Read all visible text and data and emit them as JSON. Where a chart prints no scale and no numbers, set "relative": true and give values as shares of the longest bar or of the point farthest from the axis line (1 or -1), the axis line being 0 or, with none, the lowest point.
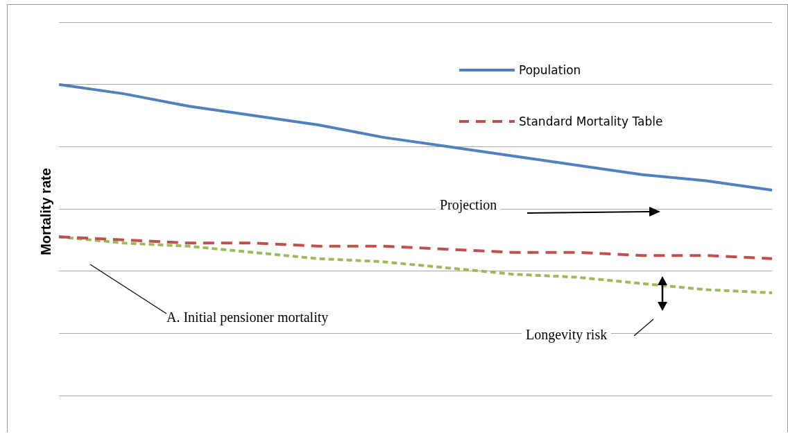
{
  "chart_data": {
    "type": "line",
    "relative": true,
    "ylabel": "Mortality rate",
    "grid": "y",
    "legend": "top right",
    "categories": [
      null,
      null,
      null,
      null,
      null,
      null,
      null,
      null,
      null,
      null,
      null,
      null
    ],
    "series": [
      {
        "name": "Population",
        "color": "#4f81bd",
        "line_style": "solid",
        "values": [
          1,
          0.97,
          0.93,
          0.9,
          0.87,
          0.83,
          0.8,
          0.77,
          0.74,
          0.71,
          0.69,
          0.66
        ]
      },
      {
        "name": "Standard Mortality Table",
        "color": "#c0504d",
        "line_style": "dashed",
        "values": [
          0.51,
          0.5,
          0.49,
          0.49,
          0.48,
          0.48,
          0.47,
          0.46,
          0.46,
          0.45,
          0.45,
          0.44
        ]
      },
      {
        "color": "#9bbb59",
        "line_style": "dotted",
        "values": [
          0.51,
          0.49,
          0.48,
          0.46,
          0.44,
          0.43,
          0.41,
          0.39,
          0.38,
          0.36,
          0.34,
          0.33
        ]
      }
    ],
    "annotations": [
      "Projection",
      "A. Initial pensioner mortality",
      "Longevity risk"
    ]
  }
}
